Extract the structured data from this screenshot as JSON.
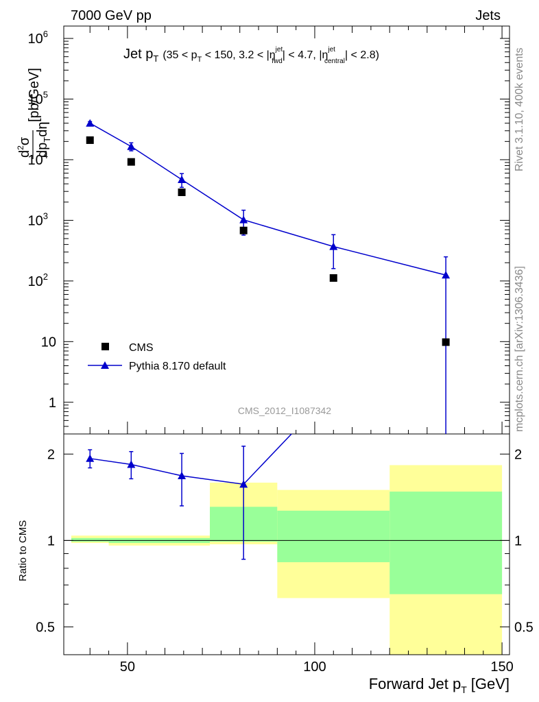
{
  "header": {
    "left": "7000 GeV pp",
    "right": "Jets",
    "side_top": "Rivet 3.1.10,  400k events",
    "side_bottom": "mcplots.cern.ch [arXiv:1306.3436]",
    "watermark": "CMS_2012_I1087342"
  },
  "title": {
    "main": "Jet p",
    "main_sub": "T",
    "cut_open": "(35 < p",
    "cut_sub1": "T",
    "cut_mid1": " < 150, 3.2 < |η",
    "cut_sup1": "jet",
    "cut_sub2": "fwd",
    "cut_mid2": "| < 4.7, |η",
    "cut_sup2": "jet",
    "cut_sub3": "central",
    "cut_close": "| < 2.8)"
  },
  "ylabel": {
    "num": "d",
    "num_sup": "2",
    "num_tail": "σ",
    "den": "dp",
    "den_sub": "T",
    "den_tail": "dη",
    "unit": "[pb/GeV]"
  },
  "xlabel": {
    "text": "Forward Jet p",
    "sub": "T",
    "unit": "[GeV]"
  },
  "ratio_ylabel": "Ratio to CMS",
  "legend": [
    {
      "label": "CMS",
      "marker": "square",
      "color": "#000000"
    },
    {
      "label": "Pythia 8.170 default",
      "marker": "triangle",
      "color": "#0000cc"
    }
  ],
  "chart_data": {
    "type": "scatter",
    "upper": {
      "yscale": "log",
      "ylim": [
        0.3,
        1600000
      ],
      "yticks": [
        {
          "v": 1,
          "label": "1"
        },
        {
          "v": 10,
          "label": "10"
        },
        {
          "v": 100,
          "label": "10",
          "sup": "2"
        },
        {
          "v": 1000,
          "label": "10",
          "sup": "3"
        },
        {
          "v": 10000,
          "label": "10",
          "sup": "4"
        },
        {
          "v": 100000,
          "label": "10",
          "sup": "5"
        },
        {
          "v": 1000000,
          "label": "10",
          "sup": "6"
        }
      ],
      "series": [
        {
          "name": "CMS",
          "x": [
            40,
            51,
            64.5,
            81,
            105,
            135
          ],
          "y": [
            21000,
            9200,
            2900,
            680,
            112,
            9.8
          ],
          "err": [
            1500,
            700,
            250,
            60,
            10,
            0.8
          ]
        },
        {
          "name": "Pythia 8.170 default",
          "x": [
            40,
            51,
            64.5,
            81,
            105,
            135
          ],
          "y": [
            40000,
            16500,
            4700,
            1020,
            370,
            125
          ],
          "err_lo": [
            2500,
            2500,
            1200,
            450,
            210,
            124.8
          ],
          "err_hi": [
            2500,
            2500,
            1200,
            450,
            210,
            125
          ]
        }
      ]
    },
    "ratio": {
      "yscale": "log",
      "ylim": [
        0.4,
        2.35
      ],
      "yticks": [
        {
          "v": 0.5,
          "label": "0.5"
        },
        {
          "v": 1,
          "label": "1"
        },
        {
          "v": 2,
          "label": "2"
        }
      ],
      "bands": [
        {
          "x0": 35,
          "x1": 45,
          "yellow": [
            0.98,
            1.04
          ],
          "green": [
            0.99,
            1.02
          ]
        },
        {
          "x0": 45,
          "x1": 72,
          "yellow": [
            0.96,
            1.04
          ],
          "green": [
            0.98,
            1.02
          ]
        },
        {
          "x0": 72,
          "x1": 90,
          "yellow": [
            0.97,
            1.59
          ],
          "green": [
            0.99,
            1.31
          ]
        },
        {
          "x0": 90,
          "x1": 120,
          "yellow": [
            0.63,
            1.5
          ],
          "green": [
            0.84,
            1.27
          ]
        },
        {
          "x0": 120,
          "x1": 150,
          "yellow": [
            0.38,
            1.83
          ],
          "green": [
            0.65,
            1.48
          ]
        }
      ],
      "series": {
        "name": "Pythia 8.170 default",
        "x": [
          40,
          51,
          64.5,
          81
        ],
        "y": [
          1.93,
          1.84,
          1.68,
          1.57
        ],
        "err_lo": [
          0.14,
          0.2,
          0.36,
          0.71
        ],
        "err_hi": [
          0.14,
          0.2,
          0.33,
          0.56
        ],
        "line_to": [
          97,
          2.6
        ]
      }
    },
    "xaxis": {
      "xlim": [
        33,
        152
      ],
      "ticks": [
        50,
        100,
        150
      ],
      "minor_step": 10
    }
  }
}
